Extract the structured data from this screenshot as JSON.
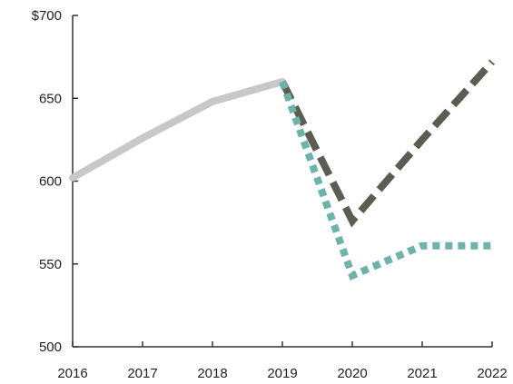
{
  "chart_data": {
    "type": "line",
    "x": [
      "2016",
      "2017",
      "2018",
      "2019",
      "2020",
      "2021",
      "2022"
    ],
    "ylim": [
      500,
      700
    ],
    "yticks": [
      {
        "value": 700,
        "label": "$700"
      },
      {
        "value": 650,
        "label": "650"
      },
      {
        "value": 600,
        "label": "600"
      },
      {
        "value": 550,
        "label": "550"
      },
      {
        "value": 500,
        "label": "500"
      }
    ],
    "grid": false,
    "series": [
      {
        "key": "historical",
        "style": "solid",
        "color": "#c8c8c8",
        "points": [
          {
            "x": "2016",
            "y": 602
          },
          {
            "x": "2017",
            "y": 626
          },
          {
            "x": "2018",
            "y": 648
          },
          {
            "x": "2019",
            "y": 660
          }
        ]
      },
      {
        "key": "projection-dashed",
        "style": "dashed",
        "color": "#5b5c52",
        "points": [
          {
            "x": "2019",
            "y": 660
          },
          {
            "x": "2020",
            "y": 576
          },
          {
            "x": "2021",
            "y": 625
          },
          {
            "x": "2022",
            "y": 672
          }
        ]
      },
      {
        "key": "projection-dotted",
        "style": "dotted",
        "color": "#6cb4a8",
        "points": [
          {
            "x": "2019",
            "y": 660
          },
          {
            "x": "2020",
            "y": 543
          },
          {
            "x": "2021",
            "y": 561
          },
          {
            "x": "2022",
            "y": 561
          }
        ]
      }
    ]
  }
}
